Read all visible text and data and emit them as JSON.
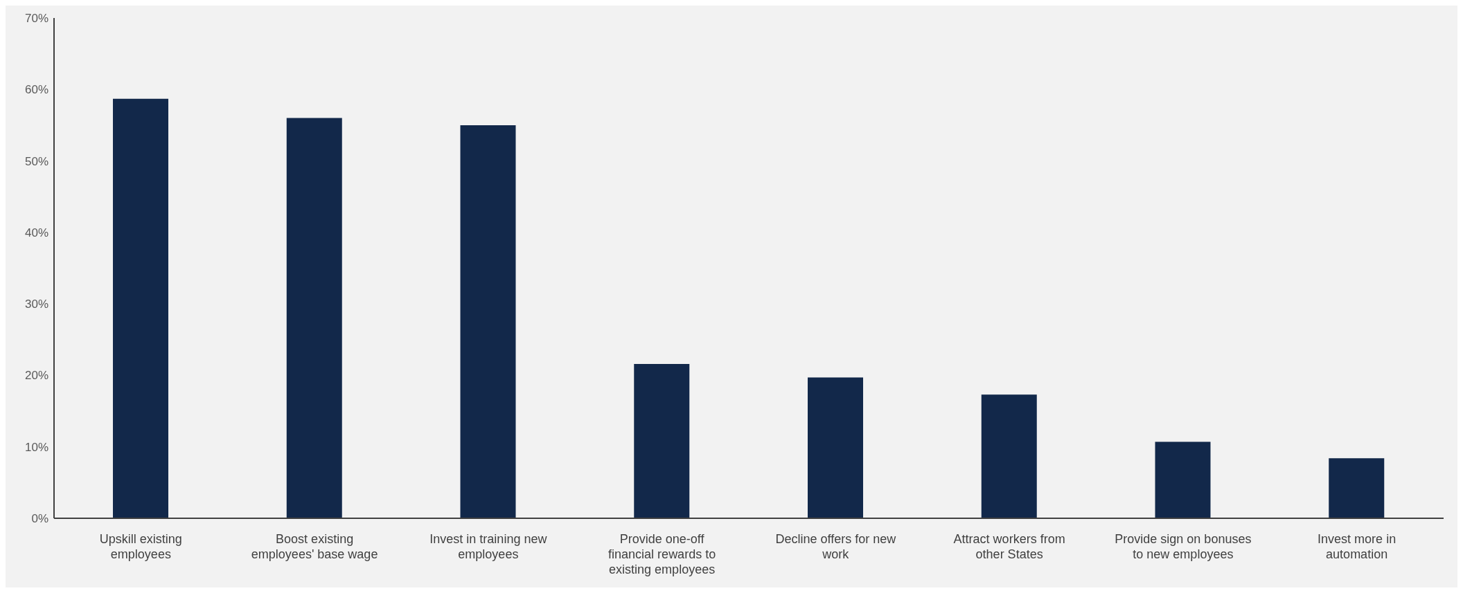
{
  "chart_data": {
    "type": "bar",
    "categories": [
      "Upskill existing employees",
      "Boost existing employees' base wage",
      "Invest in training new employees",
      "Provide one-off financial rewards to existing employees",
      "Decline offers for new work",
      "Attract workers from other States",
      "Provide sign on bonuses to new employees",
      "Invest more in automation"
    ],
    "values": [
      58.7,
      56.0,
      55.0,
      21.6,
      19.7,
      17.3,
      10.7,
      8.4
    ],
    "color": "#12284a",
    "ylim": [
      0,
      70
    ],
    "yticks": [
      {
        "value": 0,
        "label": "0%"
      },
      {
        "value": 10,
        "label": "10%"
      },
      {
        "value": 20,
        "label": "20%"
      },
      {
        "value": 30,
        "label": "30%"
      },
      {
        "value": 40,
        "label": "40%"
      },
      {
        "value": 50,
        "label": "50%"
      },
      {
        "value": 60,
        "label": "60%"
      },
      {
        "value": 70,
        "label": "70%"
      }
    ],
    "grid": false,
    "legend": false
  }
}
